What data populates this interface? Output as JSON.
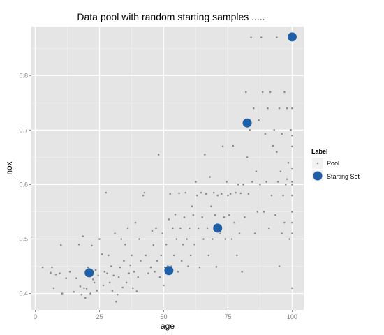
{
  "chart_data": {
    "type": "scatter",
    "title": "Data pool with random starting samples  .....",
    "xlabel": "age",
    "ylabel": "nox",
    "xlim": [
      -1.5,
      104.5
    ],
    "ylim": [
      0.37,
      0.89
    ],
    "x_ticks": [
      0,
      25,
      50,
      75,
      100
    ],
    "x_tick_labels": [
      "0",
      "25",
      "50",
      "75",
      "100"
    ],
    "y_ticks": [
      0.4,
      0.5,
      0.6,
      0.7,
      0.8
    ],
    "y_tick_labels": [
      "0.4",
      "0.5",
      "0.6",
      "0.7",
      "0.8"
    ],
    "grid": true,
    "legend": {
      "title": "Label",
      "position": "right",
      "entries": [
        "Pool",
        "Starting Set"
      ]
    },
    "colors": {
      "panel": "#e5e5e5",
      "grid_major": "#ffffff",
      "grid_minor": "#f2f2f2",
      "pool": "#8c8c8c",
      "starting_set": "#1f5fa6"
    },
    "series": [
      {
        "name": "Pool",
        "points": [
          [
            2.9,
            0.448
          ],
          [
            6.5,
            0.448
          ],
          [
            6.0,
            0.438
          ],
          [
            8.0,
            0.435
          ],
          [
            7.2,
            0.41
          ],
          [
            9.5,
            0.437
          ],
          [
            10.5,
            0.4
          ],
          [
            10.0,
            0.489
          ],
          [
            12.0,
            0.428
          ],
          [
            13.5,
            0.44
          ],
          [
            15.0,
            0.403
          ],
          [
            16.0,
            0.428
          ],
          [
            17.0,
            0.49
          ],
          [
            17.5,
            0.413
          ],
          [
            18.0,
            0.398
          ],
          [
            18.5,
            0.505
          ],
          [
            19.0,
            0.41
          ],
          [
            19.5,
            0.392
          ],
          [
            20.0,
            0.409
          ],
          [
            20.5,
            0.448
          ],
          [
            21.0,
            0.435
          ],
          [
            21.5,
            0.4
          ],
          [
            22.0,
            0.488
          ],
          [
            22.5,
            0.426
          ],
          [
            23.0,
            0.42
          ],
          [
            23.5,
            0.443
          ],
          [
            24.0,
            0.405
          ],
          [
            24.5,
            0.433
          ],
          [
            25.0,
            0.5
          ],
          [
            26.0,
            0.472
          ],
          [
            26.5,
            0.415
          ],
          [
            27.0,
            0.44
          ],
          [
            27.5,
            0.585
          ],
          [
            28.0,
            0.437
          ],
          [
            28.5,
            0.47
          ],
          [
            29.0,
            0.42
          ],
          [
            29.5,
            0.45
          ],
          [
            30.0,
            0.405
          ],
          [
            30.5,
            0.433
          ],
          [
            31.0,
            0.51
          ],
          [
            31.5,
            0.385
          ],
          [
            32.0,
            0.398
          ],
          [
            32.5,
            0.43
          ],
          [
            33.0,
            0.448
          ],
          [
            33.5,
            0.5
          ],
          [
            34.0,
            0.411
          ],
          [
            34.5,
            0.46
          ],
          [
            35.0,
            0.49
          ],
          [
            35.5,
            0.42
          ],
          [
            36.0,
            0.52
          ],
          [
            36.5,
            0.437
          ],
          [
            37.0,
            0.452
          ],
          [
            37.5,
            0.47
          ],
          [
            38.0,
            0.41
          ],
          [
            38.5,
            0.44
          ],
          [
            39.0,
            0.53
          ],
          [
            39.5,
            0.404
          ],
          [
            40.0,
            0.43
          ],
          [
            40.5,
            0.5
          ],
          [
            41.0,
            0.46
          ],
          [
            42.0,
            0.58
          ],
          [
            42.5,
            0.585
          ],
          [
            43.0,
            0.47
          ],
          [
            44.0,
            0.437
          ],
          [
            45.0,
            0.448
          ],
          [
            45.5,
            0.515
          ],
          [
            46.0,
            0.489
          ],
          [
            46.5,
            0.44
          ],
          [
            47.0,
            0.52
          ],
          [
            47.5,
            0.46
          ],
          [
            48.0,
            0.655
          ],
          [
            48.5,
            0.43
          ],
          [
            49.0,
            0.47
          ],
          [
            49.5,
            0.51
          ],
          [
            50.0,
            0.415
          ],
          [
            50.5,
            0.448
          ],
          [
            51.0,
            0.49
          ],
          [
            51.5,
            0.45
          ],
          [
            52.0,
            0.536
          ],
          [
            52.5,
            0.583
          ],
          [
            53.0,
            0.45
          ],
          [
            53.5,
            0.52
          ],
          [
            54.0,
            0.47
          ],
          [
            54.5,
            0.545
          ],
          [
            55.0,
            0.5
          ],
          [
            55.5,
            0.44
          ],
          [
            56.0,
            0.584
          ],
          [
            56.5,
            0.52
          ],
          [
            57.0,
            0.46
          ],
          [
            57.5,
            0.49
          ],
          [
            58.0,
            0.54
          ],
          [
            58.5,
            0.585
          ],
          [
            59.0,
            0.5
          ],
          [
            59.5,
            0.45
          ],
          [
            60.0,
            0.52
          ],
          [
            60.5,
            0.47
          ],
          [
            61.0,
            0.56
          ],
          [
            61.5,
            0.544
          ],
          [
            62.0,
            0.49
          ],
          [
            62.5,
            0.605
          ],
          [
            63.0,
            0.58
          ],
          [
            63.5,
            0.52
          ],
          [
            64.0,
            0.448
          ],
          [
            64.5,
            0.585
          ],
          [
            65.0,
            0.54
          ],
          [
            65.5,
            0.5
          ],
          [
            66.0,
            0.655
          ],
          [
            66.5,
            0.583
          ],
          [
            67.0,
            0.52
          ],
          [
            67.5,
            0.47
          ],
          [
            68.0,
            0.614
          ],
          [
            68.5,
            0.56
          ],
          [
            69.0,
            0.5
          ],
          [
            69.5,
            0.585
          ],
          [
            70.0,
            0.544
          ],
          [
            70.5,
            0.449
          ],
          [
            71.0,
            0.58
          ],
          [
            72.0,
            0.51
          ],
          [
            72.5,
            0.583
          ],
          [
            73.0,
            0.67
          ],
          [
            73.5,
            0.54
          ],
          [
            74.0,
            0.5
          ],
          [
            74.5,
            0.605
          ],
          [
            75.0,
            0.58
          ],
          [
            75.5,
            0.544
          ],
          [
            76.0,
            0.583
          ],
          [
            76.5,
            0.5
          ],
          [
            77.0,
            0.671
          ],
          [
            77.5,
            0.53
          ],
          [
            78.0,
            0.585
          ],
          [
            78.5,
            0.47
          ],
          [
            79.0,
            0.6
          ],
          [
            79.5,
            0.51
          ],
          [
            80.0,
            0.584
          ],
          [
            80.5,
            0.44
          ],
          [
            81.0,
            0.6
          ],
          [
            81.5,
            0.54
          ],
          [
            82.0,
            0.77
          ],
          [
            82.5,
            0.65
          ],
          [
            83.0,
            0.583
          ],
          [
            83.5,
            0.7
          ],
          [
            84.0,
            0.87
          ],
          [
            84.5,
            0.605
          ],
          [
            85.0,
            0.74
          ],
          [
            85.5,
            0.51
          ],
          [
            86.0,
            0.624
          ],
          [
            86.5,
            0.55
          ],
          [
            87.0,
            0.718
          ],
          [
            87.5,
            0.6
          ],
          [
            88.0,
            0.87
          ],
          [
            88.5,
            0.77
          ],
          [
            89.0,
            0.55
          ],
          [
            89.5,
            0.693
          ],
          [
            90.0,
            0.605
          ],
          [
            90.5,
            0.74
          ],
          [
            91.0,
            0.52
          ],
          [
            91.5,
            0.77
          ],
          [
            92.0,
            0.58
          ],
          [
            92.5,
            0.671
          ],
          [
            93.0,
            0.7
          ],
          [
            93.5,
            0.544
          ],
          [
            94.0,
            0.87
          ],
          [
            94.5,
            0.605
          ],
          [
            95.0,
            0.74
          ],
          [
            95.5,
            0.624
          ],
          [
            96.0,
            0.693
          ],
          [
            96.5,
            0.58
          ],
          [
            97.0,
            0.77
          ],
          [
            97.5,
            0.6
          ],
          [
            98.0,
            0.74
          ],
          [
            98.5,
            0.64
          ],
          [
            99.0,
            0.87
          ],
          [
            99.5,
            0.7
          ],
          [
            100.0,
            0.605
          ],
          [
            100.0,
            0.74
          ],
          [
            100.0,
            0.63
          ],
          [
            100.0,
            0.55
          ],
          [
            100.0,
            0.53
          ],
          [
            100.0,
            0.67
          ],
          [
            100.0,
            0.58
          ],
          [
            100.0,
            0.51
          ],
          [
            100.0,
            0.41
          ],
          [
            100.0,
            0.69
          ],
          [
            100.0,
            0.6
          ],
          [
            99.0,
            0.5
          ],
          [
            98.0,
            0.61
          ],
          [
            97.0,
            0.53
          ],
          [
            96.0,
            0.51
          ],
          [
            95.0,
            0.45
          ],
          [
            94.0,
            0.66
          ]
        ]
      },
      {
        "name": "Starting Set",
        "points": [
          [
            21.0,
            0.438
          ],
          [
            52.0,
            0.442
          ],
          [
            71.0,
            0.52
          ],
          [
            82.5,
            0.713
          ],
          [
            100.0,
            0.871
          ]
        ]
      }
    ]
  }
}
